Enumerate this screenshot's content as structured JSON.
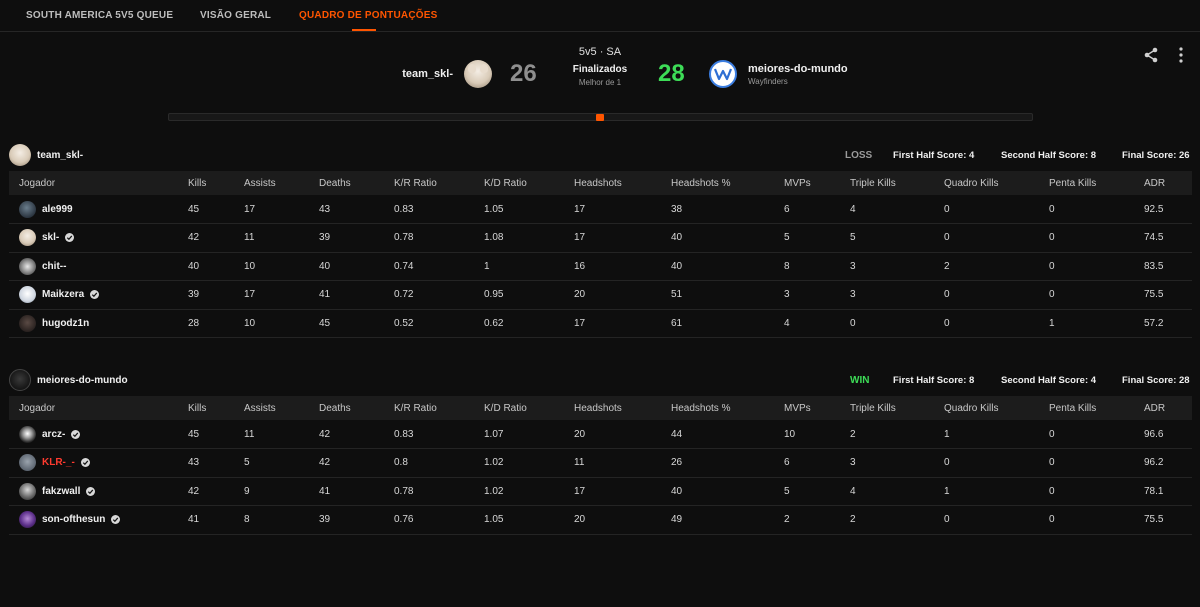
{
  "tabs": [
    "SOUTH AMERICA 5V5 QUEUE",
    "VISÃO GERAL",
    "QUADRO DE PONTUAÇÕES"
  ],
  "match": {
    "mode": "5v5 · SA",
    "status": "Finalizados",
    "best_of": "Melhor de 1",
    "team_a": {
      "name": "team_skl-",
      "score": "26"
    },
    "team_b": {
      "name": "meiores-do-mundo",
      "subtitle": "Wayfinders",
      "score": "28"
    },
    "colors": {
      "accent": "#ff5500",
      "win": "#3ddc57",
      "loss": "#8f8f8f"
    }
  },
  "columns": [
    "Jogador",
    "Kills",
    "Assists",
    "Deaths",
    "K/R Ratio",
    "K/D Ratio",
    "Headshots",
    "Headshots %",
    "MVPs",
    "Triple Kills",
    "Quadro Kills",
    "Penta Kills",
    "ADR"
  ],
  "team1": {
    "name": "team_skl-",
    "result": "LOSS",
    "first_half": "First Half Score: 4",
    "second_half": "Second Half Score: 8",
    "final": "Final Score: 26",
    "players": [
      {
        "name": "ale999",
        "verified": false,
        "stats": [
          "45",
          "17",
          "43",
          "0.83",
          "1.05",
          "17",
          "38",
          "6",
          "4",
          "0",
          "0",
          "92.5"
        ]
      },
      {
        "name": "skl-",
        "verified": true,
        "stats": [
          "42",
          "11",
          "39",
          "0.78",
          "1.08",
          "17",
          "40",
          "5",
          "5",
          "0",
          "0",
          "74.5"
        ]
      },
      {
        "name": "chit--",
        "verified": false,
        "stats": [
          "40",
          "10",
          "40",
          "0.74",
          "1",
          "16",
          "40",
          "8",
          "3",
          "2",
          "0",
          "83.5"
        ]
      },
      {
        "name": "Maikzera",
        "verified": true,
        "stats": [
          "39",
          "17",
          "41",
          "0.72",
          "0.95",
          "20",
          "51",
          "3",
          "3",
          "0",
          "0",
          "75.5"
        ]
      },
      {
        "name": "hugodz1n",
        "verified": false,
        "stats": [
          "28",
          "10",
          "45",
          "0.52",
          "0.62",
          "17",
          "61",
          "4",
          "0",
          "0",
          "1",
          "57.2"
        ]
      }
    ]
  },
  "team2": {
    "name": "meiores-do-mundo",
    "result": "WIN",
    "first_half": "First Half Score: 8",
    "second_half": "Second Half Score: 4",
    "final": "Final Score: 28",
    "players": [
      {
        "name": "arcz-",
        "verified": true,
        "stats": [
          "45",
          "11",
          "42",
          "0.83",
          "1.07",
          "20",
          "44",
          "10",
          "2",
          "1",
          "0",
          "96.6"
        ]
      },
      {
        "name": "KLR-_-",
        "verified": true,
        "stats": [
          "43",
          "5",
          "42",
          "0.8",
          "1.02",
          "11",
          "26",
          "6",
          "3",
          "0",
          "0",
          "96.2"
        ]
      },
      {
        "name": "fakzwall",
        "verified": true,
        "stats": [
          "42",
          "9",
          "41",
          "0.78",
          "1.02",
          "17",
          "40",
          "5",
          "4",
          "1",
          "0",
          "78.1"
        ]
      },
      {
        "name": "son-ofthesun",
        "verified": true,
        "stats": [
          "41",
          "8",
          "39",
          "0.76",
          "1.05",
          "20",
          "49",
          "2",
          "2",
          "0",
          "0",
          "75.5"
        ]
      }
    ]
  }
}
